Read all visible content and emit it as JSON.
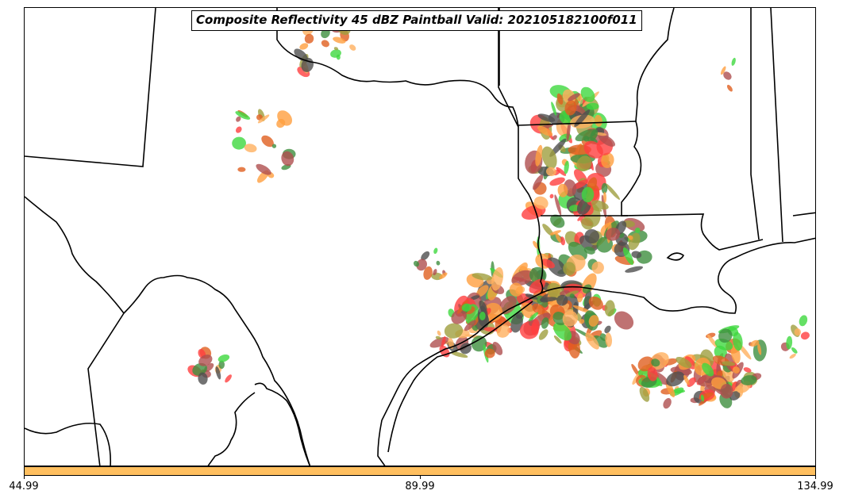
{
  "title": "Composite Reflectivity 45 dBZ Paintball Valid: 202105182100f011",
  "colorbar": {
    "color": "#FFBF5F",
    "ticks": [
      "44.99",
      "89.99",
      "134.99"
    ]
  },
  "palette": {
    "forest_green": "#3F8F3F",
    "light_green": "#3FD83F",
    "olive": "#9F9F3F",
    "orange": "#FF9F3F",
    "light_orange": "#FFB05F",
    "red": "#FF3F3F",
    "brick": "#AF4F4F",
    "dark_gray": "#4F4F4F",
    "burnt_orange": "#E05F1F"
  },
  "map": {
    "boundaries": "state and coastline outlines, black"
  }
}
